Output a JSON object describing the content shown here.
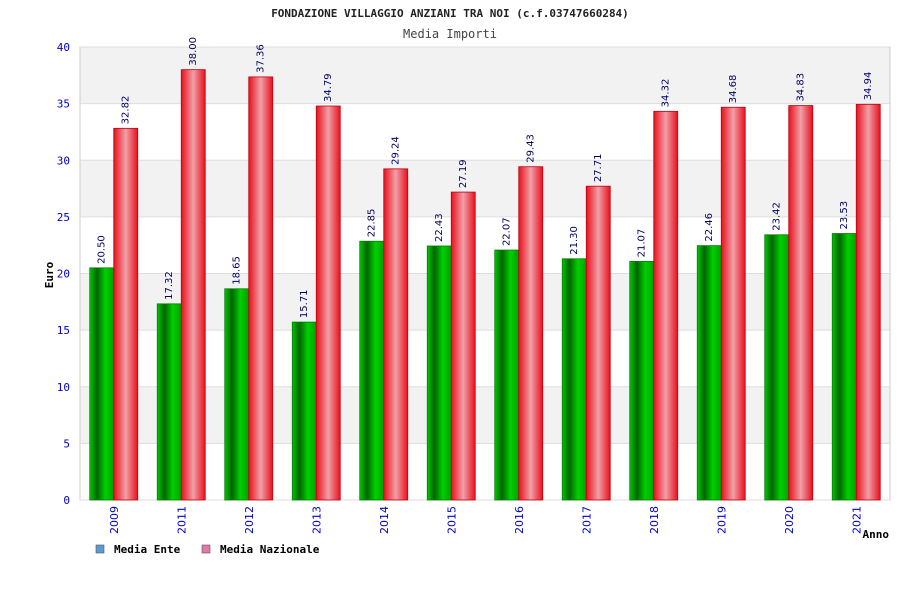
{
  "chart_data": {
    "type": "bar",
    "title": "FONDAZIONE VILLAGGIO ANZIANI TRA NOI (c.f.03747660284)",
    "subtitle": "Media Importi",
    "xlabel": "Anno",
    "ylabel": "Euro",
    "ylim": [
      0,
      40
    ],
    "ytick_step": 5,
    "grid": "horizontal",
    "legend_position": "bottom-left",
    "categories": [
      "2009",
      "2011",
      "2012",
      "2013",
      "2014",
      "2015",
      "2016",
      "2017",
      "2018",
      "2019",
      "2020",
      "2021"
    ],
    "series": [
      {
        "name": "Media Ente",
        "color": "#00a000",
        "legend_color": "#5b9bd5",
        "values": [
          20.5,
          17.32,
          18.65,
          15.71,
          22.85,
          22.43,
          22.07,
          21.3,
          21.07,
          22.46,
          23.42,
          23.53
        ],
        "labels": [
          "20.50",
          "17.32",
          "18.65",
          "15.71",
          "22.85",
          "22.43",
          "22.07",
          "21.30",
          "21.07",
          "22.46",
          "23.42",
          "23.53"
        ]
      },
      {
        "name": "Media Nazionale",
        "color": "#e8101c",
        "legend_color": "#e377a8",
        "values": [
          32.82,
          38.0,
          37.36,
          34.79,
          29.24,
          27.19,
          29.43,
          27.71,
          34.32,
          34.68,
          34.83,
          34.94
        ],
        "labels": [
          "32.82",
          "38.00",
          "37.36",
          "34.79",
          "29.24",
          "27.19",
          "29.43",
          "27.71",
          "34.32",
          "34.68",
          "34.83",
          "34.94"
        ]
      }
    ]
  }
}
